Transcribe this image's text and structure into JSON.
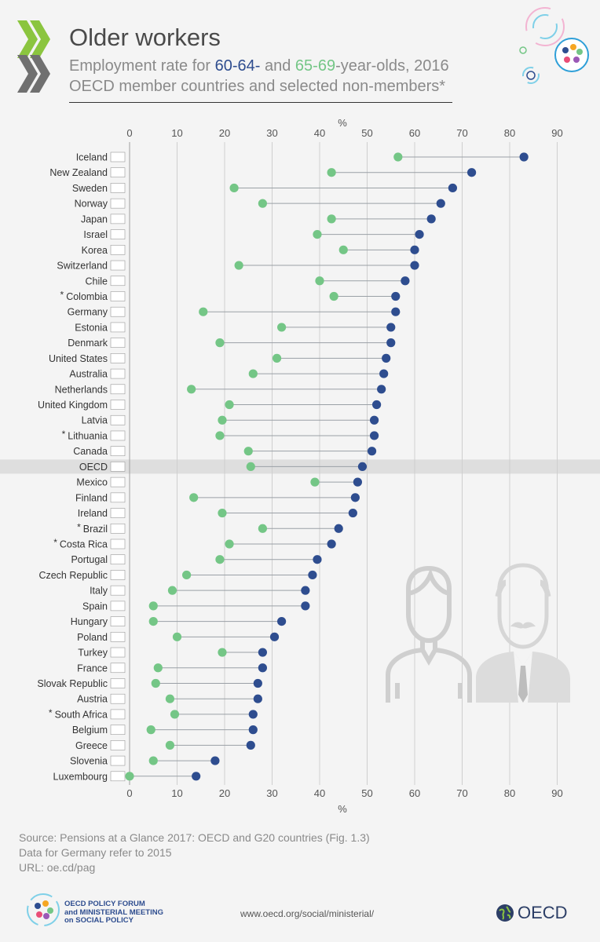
{
  "header": {
    "title": "Older workers",
    "subtitle_prefix": "Employment rate for ",
    "series_a_label": "60-64-",
    "subtitle_mid": " and ",
    "series_b_label": "65-69",
    "subtitle_suffix": "-year-olds, 2016",
    "subtitle_line2": "OECD member countries and selected non-members*"
  },
  "chart_data": {
    "type": "dumbbell",
    "axis_unit": "%",
    "xlim": [
      0,
      90
    ],
    "xticks": [
      0,
      10,
      20,
      30,
      40,
      50,
      60,
      70,
      80,
      90
    ],
    "grid": true,
    "highlight_row": "OECD",
    "colors": {
      "age_60_64": "#2e4d8f",
      "age_65_69": "#74c686"
    },
    "series": [
      {
        "name": "60-64",
        "color": "#2e4d8f"
      },
      {
        "name": "65-69",
        "color": "#74c686"
      }
    ],
    "rows": [
      {
        "country": "Iceland",
        "star": false,
        "v6064": 83,
        "v6569": 56.5
      },
      {
        "country": "New Zealand",
        "star": false,
        "v6064": 72,
        "v6569": 42.5
      },
      {
        "country": "Sweden",
        "star": false,
        "v6064": 68,
        "v6569": 22
      },
      {
        "country": "Norway",
        "star": false,
        "v6064": 65.5,
        "v6569": 28
      },
      {
        "country": "Japan",
        "star": false,
        "v6064": 63.5,
        "v6569": 42.5
      },
      {
        "country": "Israel",
        "star": false,
        "v6064": 61,
        "v6569": 39.5
      },
      {
        "country": "Korea",
        "star": false,
        "v6064": 60,
        "v6569": 45
      },
      {
        "country": "Switzerland",
        "star": false,
        "v6064": 60,
        "v6569": 23
      },
      {
        "country": "Chile",
        "star": false,
        "v6064": 58,
        "v6569": 40
      },
      {
        "country": "Colombia",
        "star": true,
        "v6064": 56,
        "v6569": 43
      },
      {
        "country": "Germany",
        "star": false,
        "v6064": 56,
        "v6569": 15.5
      },
      {
        "country": "Estonia",
        "star": false,
        "v6064": 55,
        "v6569": 32
      },
      {
        "country": "Denmark",
        "star": false,
        "v6064": 55,
        "v6569": 19
      },
      {
        "country": "United States",
        "star": false,
        "v6064": 54,
        "v6569": 31
      },
      {
        "country": "Australia",
        "star": false,
        "v6064": 53.5,
        "v6569": 26
      },
      {
        "country": "Netherlands",
        "star": false,
        "v6064": 53,
        "v6569": 13
      },
      {
        "country": "United Kingdom",
        "star": false,
        "v6064": 52,
        "v6569": 21
      },
      {
        "country": "Latvia",
        "star": false,
        "v6064": 51.5,
        "v6569": 19.5
      },
      {
        "country": "Lithuania",
        "star": true,
        "v6064": 51.5,
        "v6569": 19
      },
      {
        "country": "Canada",
        "star": false,
        "v6064": 51,
        "v6569": 25
      },
      {
        "country": "OECD",
        "star": false,
        "v6064": 49,
        "v6569": 25.5
      },
      {
        "country": "Mexico",
        "star": false,
        "v6064": 48,
        "v6569": 39
      },
      {
        "country": "Finland",
        "star": false,
        "v6064": 47.5,
        "v6569": 13.5
      },
      {
        "country": "Ireland",
        "star": false,
        "v6064": 47,
        "v6569": 19.5
      },
      {
        "country": "Brazil",
        "star": true,
        "v6064": 44,
        "v6569": 28
      },
      {
        "country": "Costa Rica",
        "star": true,
        "v6064": 42.5,
        "v6569": 21
      },
      {
        "country": "Portugal",
        "star": false,
        "v6064": 39.5,
        "v6569": 19
      },
      {
        "country": "Czech Republic",
        "star": false,
        "v6064": 38.5,
        "v6569": 12
      },
      {
        "country": "Italy",
        "star": false,
        "v6064": 37,
        "v6569": 9
      },
      {
        "country": "Spain",
        "star": false,
        "v6064": 37,
        "v6569": 5
      },
      {
        "country": "Hungary",
        "star": false,
        "v6064": 32,
        "v6569": 5
      },
      {
        "country": "Poland",
        "star": false,
        "v6064": 30.5,
        "v6569": 10
      },
      {
        "country": "Turkey",
        "star": false,
        "v6064": 28,
        "v6569": 19.5
      },
      {
        "country": "France",
        "star": false,
        "v6064": 28,
        "v6569": 6
      },
      {
        "country": "Slovak Republic",
        "star": false,
        "v6064": 27,
        "v6569": 5.5
      },
      {
        "country": "Austria",
        "star": false,
        "v6064": 27,
        "v6569": 8.5
      },
      {
        "country": "South Africa",
        "star": true,
        "v6064": 26,
        "v6569": 9.5
      },
      {
        "country": "Belgium",
        "star": false,
        "v6064": 26,
        "v6569": 4.5
      },
      {
        "country": "Greece",
        "star": false,
        "v6064": 25.5,
        "v6569": 8.5
      },
      {
        "country": "Slovenia",
        "star": false,
        "v6064": 18,
        "v6569": 5
      },
      {
        "country": "Luxembourg",
        "star": false,
        "v6064": 14,
        "v6569": 0
      }
    ]
  },
  "footer": {
    "source": "Source: Pensions at a Glance 2017: OECD and G20 countries (Fig. 1.3)",
    "note": "Data for Germany refer to 2015",
    "url_line": "URL: oe.cd/pag",
    "forum_line1": "OECD POLICY FORUM",
    "forum_line2": "and MINISTERIAL MEETING",
    "forum_line3_prefix": "on",
    "forum_line3_strong": "SOCIAL POLICY",
    "website": "www.oecd.org/social/ministerial/",
    "brand": "OECD"
  }
}
